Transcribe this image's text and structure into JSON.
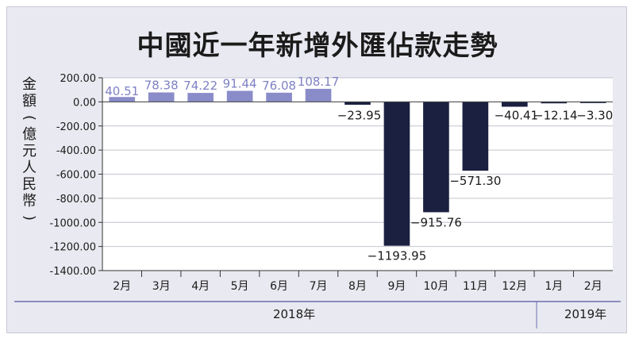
{
  "chart_data": {
    "type": "bar",
    "title": "中國近一年新增外匯佔款走勢",
    "ylabel": "金額(億元人民幣)",
    "categories": [
      "2月",
      "3月",
      "4月",
      "5月",
      "6月",
      "7月",
      "8月",
      "9月",
      "10月",
      "11月",
      "12月",
      "1月",
      "2月"
    ],
    "values": [
      40.51,
      78.38,
      74.22,
      91.44,
      76.08,
      108.17,
      -23.95,
      -1193.95,
      -915.76,
      -571.3,
      -40.41,
      -12.14,
      -3.3
    ],
    "value_labels": [
      "40.51",
      "78.38",
      "74.22",
      "91.44",
      "76.08",
      "108.17",
      "−23.95",
      "−1193.95",
      "−915.76",
      "−571.30",
      "−40.41",
      "−12.14",
      "−3.30"
    ],
    "ylim": [
      -1400,
      200
    ],
    "yticks": [
      200,
      0,
      -200,
      -400,
      -600,
      -800,
      -1000,
      -1200,
      -1400
    ],
    "ytick_labels": [
      "200.00",
      "0.00",
      "-200.00",
      "-400.00",
      "-600.00",
      "-800.00",
      "-1000.00",
      "-1200.00",
      "-1400.00"
    ],
    "year_groups": [
      {
        "label": "2018年",
        "count": 11
      },
      {
        "label": "2019年",
        "count": 2
      }
    ],
    "grid": true,
    "colors": {
      "positive_bar": "#8a8cc9",
      "negative_bar": "#1b2040",
      "positive_label": "#7e81c4",
      "negative_label": "#1b1b1b",
      "plot_bg": "#ffffff",
      "grid": "#c4c4cf"
    }
  }
}
